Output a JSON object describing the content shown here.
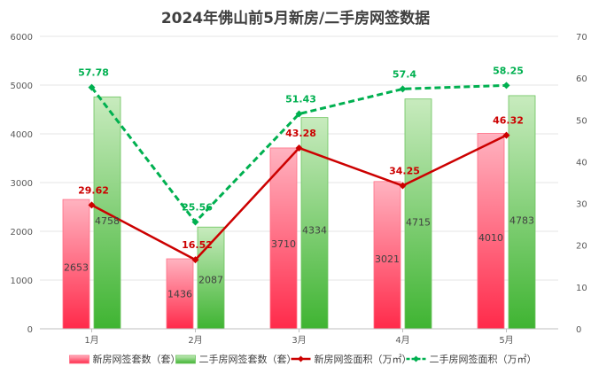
{
  "chart_data": {
    "type": "bar",
    "title": "2024年佛山前5月新房/二手房网签数据",
    "categories": [
      "1月",
      "2月",
      "3月",
      "4月",
      "5月"
    ],
    "ylim": [
      0,
      6000
    ],
    "y_ticks": [
      0,
      1000,
      2000,
      3000,
      4000,
      5000,
      6000
    ],
    "y2lim": [
      0,
      70
    ],
    "y2_ticks": [
      0,
      10,
      20,
      30,
      40,
      50,
      60,
      70
    ],
    "grid": true,
    "legend_position": "bottom",
    "series": [
      {
        "name": "新房网签套数（套）",
        "kind": "bar",
        "axis": "left",
        "color": "#ff3355",
        "values": [
          2653,
          1436,
          3710,
          3021,
          4010
        ],
        "labels": [
          "2653",
          "1436",
          "3710",
          "3021",
          "4010"
        ]
      },
      {
        "name": "二手房网签套数（套）",
        "kind": "bar",
        "axis": "left",
        "color": "#4cbb3c",
        "values": [
          4758,
          2087,
          4334,
          4715,
          4783
        ],
        "labels": [
          "4758",
          "2087",
          "4334",
          "4715",
          "4783"
        ]
      },
      {
        "name": "新房网签面积（万㎡）",
        "kind": "line",
        "axis": "right",
        "color": "#cc0000",
        "values": [
          29.62,
          16.52,
          43.28,
          34.25,
          46.32
        ],
        "labels": [
          "29.62",
          "16.52",
          "43.28",
          "34.25",
          "46.32"
        ]
      },
      {
        "name": "二手房网签面积（万㎡）",
        "kind": "line",
        "axis": "right",
        "color": "#00b050",
        "values": [
          57.78,
          25.56,
          51.43,
          57.4,
          58.25
        ],
        "labels": [
          "57.78",
          "25.56",
          "51.43",
          "57.4",
          "58.25"
        ]
      }
    ]
  }
}
